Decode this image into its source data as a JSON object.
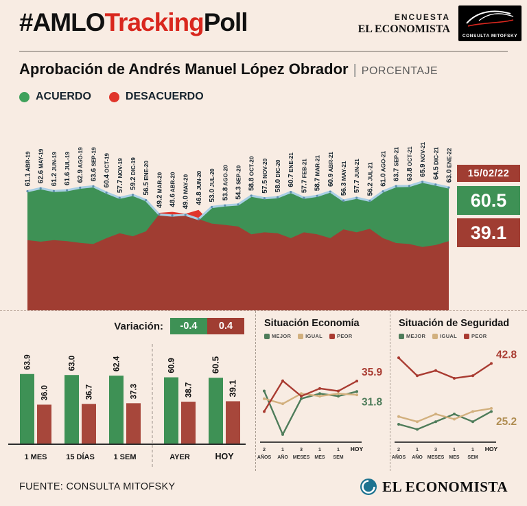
{
  "header": {
    "hashtag": {
      "black1": "#AMLO",
      "red": "Tracking",
      "black2": "Poll"
    },
    "encuesta_label": "ENCUESTA",
    "brand": "EL ECONOMISTA",
    "mitofsky_label": "CONSULTA MITOFSKY"
  },
  "title": {
    "main": "Aprobación de Andrés Manuel López Obrador",
    "separator": "|",
    "unit": "PORCENTAJE"
  },
  "legend": {
    "agree": "ACUERDO",
    "disagree": "DESACUERDO"
  },
  "badges": {
    "date": "15/02/22",
    "approval": "60.5",
    "disapproval": "39.1"
  },
  "variation": {
    "label": "Variación:",
    "acuerdo_change": "-0.4",
    "desacuerdo_change": "0.4"
  },
  "footer": {
    "source": "FUENTE: CONSULTA MITOFSKY",
    "brand": "EL ECONOMISTA"
  },
  "colors": {
    "background": "#f8ece3",
    "green": "#3e9155",
    "bright_red": "#e0352b",
    "maroon": "#a03d32",
    "bar_red": "#a7473b",
    "blue_line": "#a9cfe4",
    "mejor_green": "#4e7c5a",
    "igual_tan": "#d2b07e",
    "peor_red": "#a93b31",
    "label_dark": "#16242e"
  },
  "chart_data": [
    {
      "type": "area",
      "title": "Aprobación de Andrés Manuel López Obrador",
      "categories": [
        "ABR-19",
        "MAY-19",
        "JUN-19",
        "JUL-19",
        "AGO-19",
        "SEP-19",
        "OCT-19",
        "NOV-19",
        "DIC-19",
        "ENE-20",
        "MAR-20",
        "ABR-20",
        "MAY-20",
        "JUN-20",
        "JUL-20",
        "AGO-20",
        "SEP-20",
        "OCT-20",
        "NOV-20",
        "DIC-20",
        "ENE-21",
        "FEB-21",
        "MAR-21",
        "ABR-21",
        "MAY-21",
        "JUN-21",
        "JUL-21",
        "AGO-21",
        "SEP-21",
        "OCT-21",
        "NOV-21",
        "DIC-21",
        "ENE-22"
      ],
      "series": [
        {
          "name": "ACUERDO",
          "color": "#3e9155",
          "values": [
            61.1,
            62.6,
            61.2,
            61.6,
            62.9,
            63.6,
            60.4,
            57.7,
            59.2,
            56.5,
            49.2,
            48.6,
            49.0,
            46.8,
            53.0,
            53.8,
            54.3,
            58.8,
            57.5,
            58.0,
            60.7,
            57.7,
            58.7,
            60.9,
            56.3,
            57.7,
            56.2,
            61.0,
            63.7,
            63.8,
            65.9,
            64.5,
            63.0
          ]
        },
        {
          "name": "DESACUERDO",
          "color": "#e0352b",
          "values": [
            36.0,
            35.2,
            36.0,
            35.5,
            34.6,
            34.0,
            37.0,
            39.5,
            38.0,
            40.5,
            50.0,
            50.5,
            49.5,
            51.5,
            44.5,
            43.8,
            43.0,
            39.0,
            40.0,
            39.5,
            37.0,
            40.0,
            39.0,
            37.0,
            41.5,
            40.0,
            41.8,
            37.0,
            34.5,
            34.0,
            32.5,
            33.5,
            35.5
          ]
        }
      ],
      "ylim": [
        0,
        70
      ],
      "legend_position": "top-left",
      "grid": false
    },
    {
      "type": "bar",
      "categories": [
        "1 MES",
        "15 DÍAS",
        "1 SEM",
        "AYER",
        "HOY"
      ],
      "series": [
        {
          "name": "ACUERDO",
          "color": "#3e9155",
          "values": [
            63.9,
            63.0,
            62.4,
            60.9,
            60.5
          ]
        },
        {
          "name": "DESACUERDO",
          "color": "#a7473b",
          "values": [
            36.0,
            36.7,
            37.3,
            38.7,
            39.1
          ]
        }
      ],
      "ylim": [
        0,
        70
      ],
      "grid": false
    },
    {
      "type": "line",
      "title": "Situación Economía",
      "categories": [
        "2 AÑOS",
        "1 AÑO",
        "3 MESES",
        "1 MES",
        "1 SEM",
        "HOY"
      ],
      "series": [
        {
          "name": "MEJOR",
          "color": "#4e7c5a",
          "values": [
            32,
            15,
            29,
            31,
            30,
            31.8
          ]
        },
        {
          "name": "IGUAL",
          "color": "#d2b07e",
          "values": [
            29,
            27,
            31,
            30,
            31,
            30.5
          ]
        },
        {
          "name": "PEOR",
          "color": "#a93b31",
          "values": [
            24,
            36,
            30,
            33,
            32,
            35.9
          ]
        }
      ],
      "end_labels": [
        {
          "text": "35.9",
          "series": "PEOR",
          "color": "#a93b31",
          "dy": -8
        },
        {
          "text": "31.8",
          "series": "MEJOR",
          "color": "#4e7c5a",
          "dy": 20
        }
      ],
      "ylim": [
        12,
        48
      ],
      "grid": false
    },
    {
      "type": "line",
      "title": "Situación de Seguridad",
      "categories": [
        "2 AÑOS",
        "1 AÑO",
        "3 MESES",
        "1 MES",
        "1 SEM",
        "HOY"
      ],
      "series": [
        {
          "name": "MEJOR",
          "color": "#4e7c5a",
          "values": [
            19,
            17,
            20,
            23,
            20,
            24
          ]
        },
        {
          "name": "IGUAL",
          "color": "#d2b07e",
          "values": [
            22,
            20,
            23,
            21,
            24,
            25.2
          ]
        },
        {
          "name": "PEOR",
          "color": "#a93b31",
          "values": [
            45,
            38,
            40,
            37,
            38,
            42.8
          ]
        }
      ],
      "end_labels": [
        {
          "text": "42.8",
          "series": "PEOR",
          "color": "#a93b31",
          "dy": -8
        },
        {
          "text": "25.2",
          "series": "IGUAL",
          "color": "#b08d52",
          "dy": 24
        }
      ],
      "ylim": [
        12,
        48
      ],
      "grid": false
    }
  ]
}
